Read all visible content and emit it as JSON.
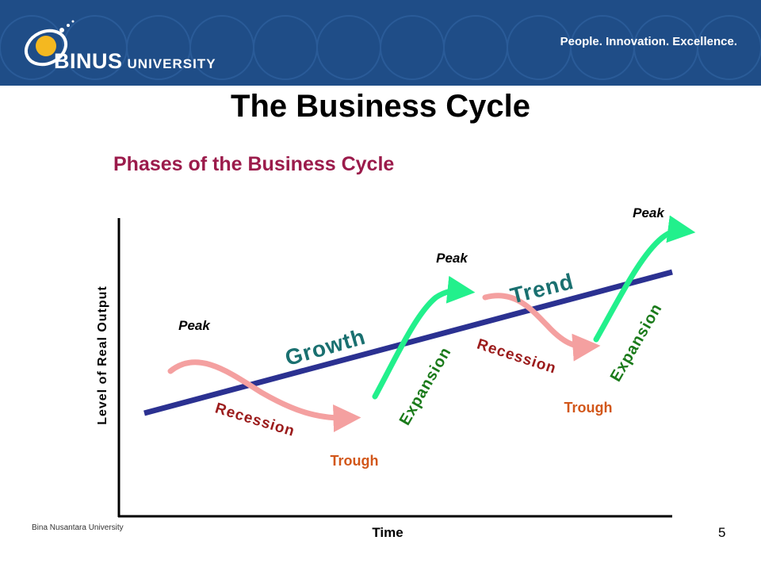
{
  "header": {
    "logo_text": "BINUS",
    "logo_suffix": "UNIVERSITY",
    "tagline": "People. Innovation. Excellence."
  },
  "slide": {
    "title": "The Business Cycle",
    "subtitle": "Phases of the Business Cycle"
  },
  "diagram": {
    "y_axis_label": "Level of Real Output",
    "x_axis_label": "Time",
    "trend_labels": {
      "growth": "Growth",
      "trend": "Trend"
    },
    "peak_labels": [
      "Peak",
      "Peak",
      "Peak"
    ],
    "recession_labels": [
      "Recession",
      "Recession"
    ],
    "expansion_labels": [
      "Expansion",
      "Expansion"
    ],
    "trough_labels": [
      "Trough",
      "Trough"
    ],
    "colors": {
      "trend_line": "#2b3191",
      "recession": "#f4a0a0",
      "expansion": "#22f08c",
      "recession_text": "#9b1b1b",
      "expansion_text": "#1a7a1a",
      "trough_text": "#d2571a",
      "trend_text": "#1a7070"
    }
  },
  "footer": {
    "institution": "Bina Nusantara University",
    "page_number": "5"
  }
}
